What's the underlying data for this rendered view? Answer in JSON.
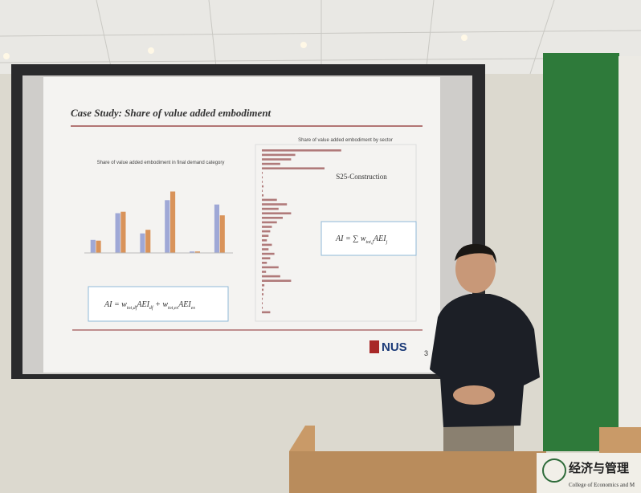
{
  "slide": {
    "title": "Case Study: Share of value added embodiment",
    "left_chart": {
      "type": "bar",
      "title": "Share of value added embodiment in final demand category",
      "series": [
        {
          "color": "#9fa8d6",
          "values": [
            18,
            55,
            27,
            73,
            2,
            67
          ]
        },
        {
          "color": "#d9935a",
          "values": [
            17,
            57,
            32,
            85,
            2,
            52
          ]
        }
      ],
      "ylim": [
        0,
        100
      ]
    },
    "right_chart": {
      "type": "hbar",
      "title": "Share of value added embodiment by sector",
      "annotation": "S25-Construction",
      "color": "#b07a7a",
      "values": [
        95,
        40,
        35,
        22,
        75,
        1,
        1,
        1,
        2,
        1,
        2,
        18,
        30,
        20,
        35,
        25,
        18,
        12,
        10,
        8,
        6,
        12,
        8,
        15,
        10,
        6,
        20,
        5,
        22,
        35,
        3,
        2,
        2,
        1,
        1,
        1,
        10
      ],
      "xlim": [
        0,
        100
      ]
    },
    "formula_left": [
      "AI = w",
      "tot,df",
      "AEI",
      "df",
      " + w",
      "tot,ex",
      "AEI",
      "ex"
    ],
    "formula_right": [
      "AI = ∑ w",
      "tot,j",
      "AEI",
      "j"
    ],
    "logo": "NUS",
    "page": "3"
  },
  "sign": {
    "chinese": "经济与管理",
    "english": "College of Economics and M"
  }
}
